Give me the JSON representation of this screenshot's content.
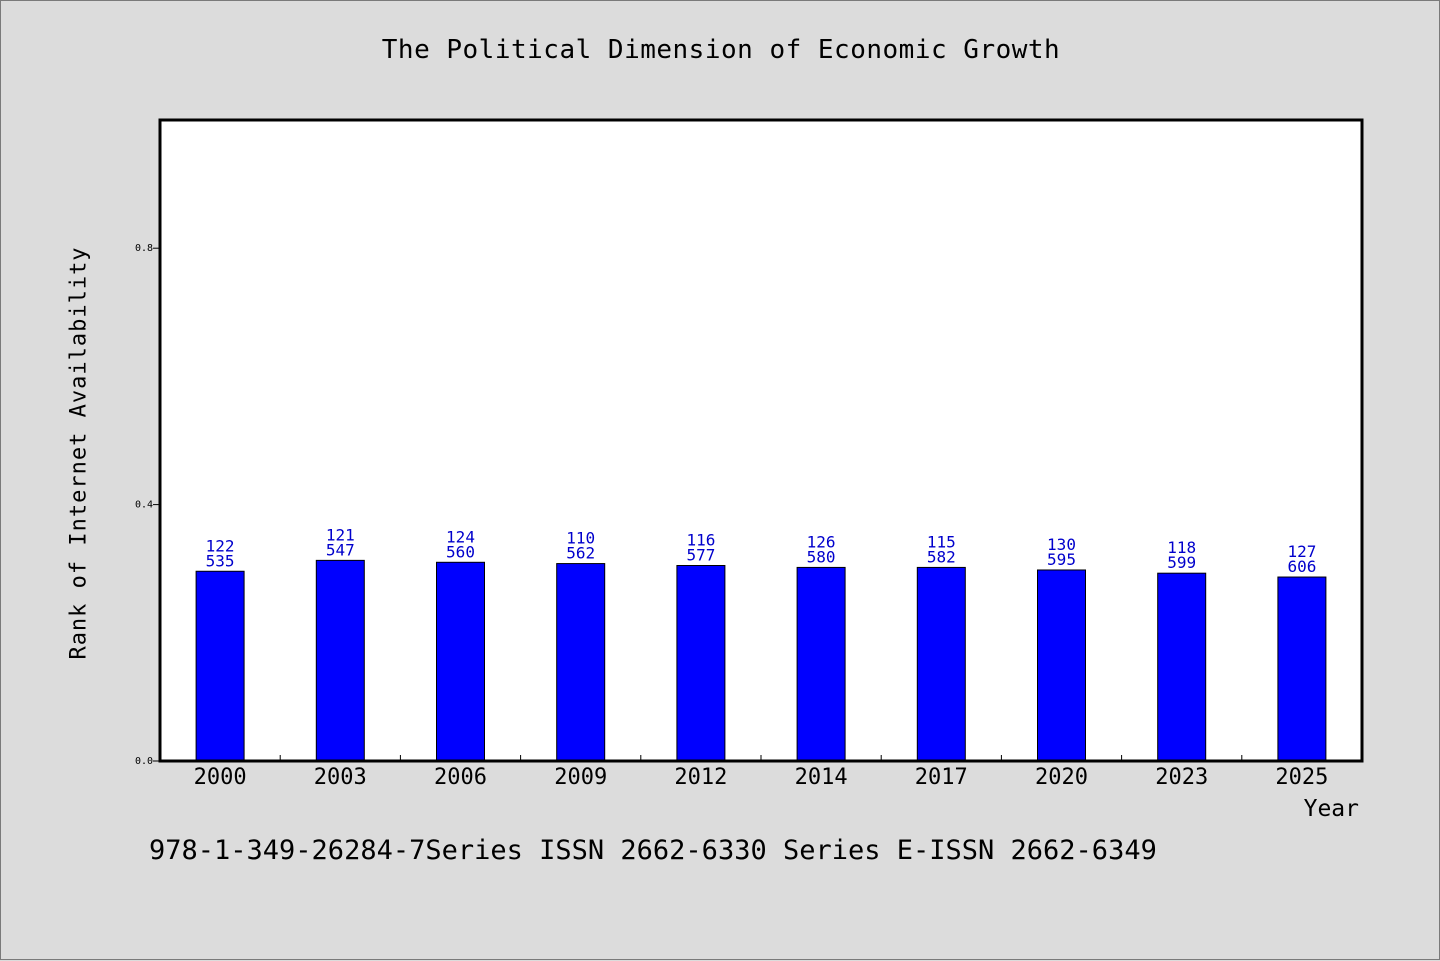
{
  "chart_data": {
    "type": "bar",
    "title": "The Political Dimension of Economic Growth",
    "xlabel": "Year",
    "ylabel": "Rank of Internet Availability",
    "categories": [
      "2000",
      "2003",
      "2006",
      "2009",
      "2012",
      "2014",
      "2017",
      "2020",
      "2023",
      "2025"
    ],
    "values": [
      0.296,
      0.313,
      0.31,
      0.308,
      0.305,
      0.302,
      0.302,
      0.298,
      0.293,
      0.287
    ],
    "data_labels_top": [
      "122",
      "121",
      "124",
      "110",
      "116",
      "126",
      "115",
      "130",
      "118",
      "127"
    ],
    "data_labels_bottom": [
      "535",
      "547",
      "560",
      "562",
      "577",
      "580",
      "582",
      "595",
      "599",
      "606"
    ],
    "ylim": [
      0,
      1.0
    ],
    "yticks": [
      0.0,
      0.4,
      0.8
    ],
    "ytick_labels": [
      "0.0",
      "0.4",
      "0.8"
    ],
    "grid": false,
    "bar_color": "#0000ff",
    "label_color": "#0000cc"
  },
  "footer": {
    "text": "978-1-349-26284-7Series ISSN 2662-6330 Series E-ISSN 2662-6349"
  }
}
